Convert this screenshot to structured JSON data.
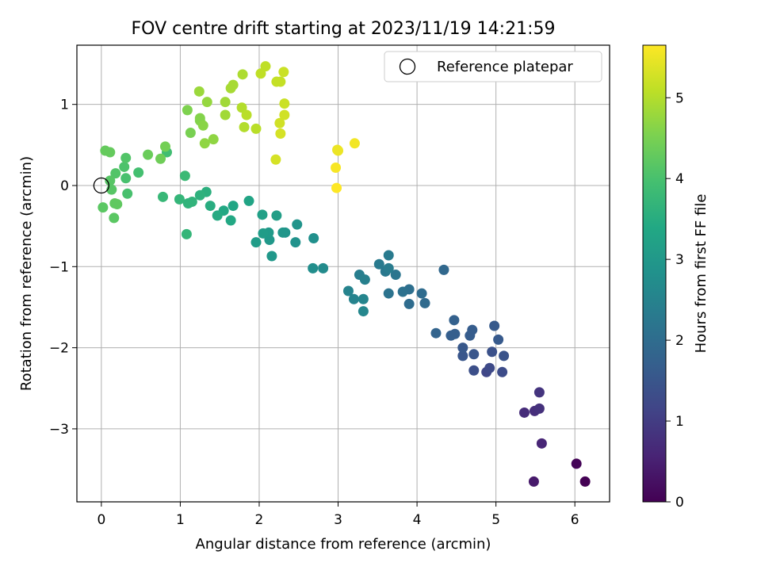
{
  "chart_data": {
    "type": "scatter",
    "title": "FOV centre drift starting at 2023/11/19 14:21:59",
    "xlabel": "Angular distance from reference (arcmin)",
    "ylabel": "Rotation from reference (arcmin)",
    "xlim": [
      -0.31,
      6.44
    ],
    "ylim": [
      -3.9,
      1.73
    ],
    "xticks": [
      "0",
      "1",
      "2",
      "3",
      "4",
      "5",
      "6"
    ],
    "yticks": [
      "−3",
      "−2",
      "−1",
      "0",
      "1"
    ],
    "grid": true,
    "legend": {
      "position": "top-right",
      "entries": [
        "Reference platepar"
      ]
    },
    "reference_point": {
      "x": 0,
      "y": 0
    },
    "colorbar": {
      "label": "Hours from first FF file",
      "range": [
        0,
        5.65
      ],
      "ticks": [
        "0",
        "1",
        "2",
        "3",
        "4",
        "5"
      ],
      "colormap": "viridis"
    },
    "points": [
      {
        "x": 6.13,
        "y": -3.65,
        "c": 0.0
      },
      {
        "x": 6.02,
        "y": -3.43,
        "c": 0.05
      },
      {
        "x": 5.48,
        "y": -3.65,
        "c": 0.4
      },
      {
        "x": 5.58,
        "y": -3.18,
        "c": 0.6
      },
      {
        "x": 5.36,
        "y": -2.8,
        "c": 0.7
      },
      {
        "x": 5.49,
        "y": -2.78,
        "c": 0.75
      },
      {
        "x": 5.55,
        "y": -2.75,
        "c": 0.8
      },
      {
        "x": 5.55,
        "y": -2.55,
        "c": 0.85
      },
      {
        "x": 4.88,
        "y": -2.3,
        "c": 1.2
      },
      {
        "x": 4.92,
        "y": -2.25,
        "c": 1.25
      },
      {
        "x": 5.08,
        "y": -2.3,
        "c": 1.3
      },
      {
        "x": 4.72,
        "y": -2.28,
        "c": 1.35
      },
      {
        "x": 4.95,
        "y": -2.05,
        "c": 1.4
      },
      {
        "x": 5.1,
        "y": -2.1,
        "c": 1.45
      },
      {
        "x": 4.58,
        "y": -2.1,
        "c": 1.5
      },
      {
        "x": 4.72,
        "y": -2.08,
        "c": 1.5
      },
      {
        "x": 4.58,
        "y": -2.0,
        "c": 1.55
      },
      {
        "x": 5.03,
        "y": -1.9,
        "c": 1.6
      },
      {
        "x": 4.98,
        "y": -1.73,
        "c": 1.6
      },
      {
        "x": 4.67,
        "y": -1.85,
        "c": 1.65
      },
      {
        "x": 4.7,
        "y": -1.78,
        "c": 1.65
      },
      {
        "x": 4.48,
        "y": -1.83,
        "c": 1.7
      },
      {
        "x": 4.43,
        "y": -1.85,
        "c": 1.7
      },
      {
        "x": 4.47,
        "y": -1.66,
        "c": 1.75
      },
      {
        "x": 4.24,
        "y": -1.82,
        "c": 1.8
      },
      {
        "x": 4.34,
        "y": -1.04,
        "c": 1.9
      },
      {
        "x": 4.1,
        "y": -1.45,
        "c": 1.95
      },
      {
        "x": 4.06,
        "y": -1.33,
        "c": 2.0
      },
      {
        "x": 3.9,
        "y": -1.46,
        "c": 2.0
      },
      {
        "x": 3.9,
        "y": -1.28,
        "c": 2.05
      },
      {
        "x": 3.82,
        "y": -1.31,
        "c": 2.1
      },
      {
        "x": 3.64,
        "y": -1.33,
        "c": 2.15
      },
      {
        "x": 3.73,
        "y": -1.1,
        "c": 2.2
      },
      {
        "x": 3.6,
        "y": -1.06,
        "c": 2.25
      },
      {
        "x": 3.64,
        "y": -0.86,
        "c": 2.3
      },
      {
        "x": 3.52,
        "y": -0.97,
        "c": 2.3
      },
      {
        "x": 3.64,
        "y": -1.02,
        "c": 2.35
      },
      {
        "x": 3.27,
        "y": -1.1,
        "c": 2.4
      },
      {
        "x": 3.34,
        "y": -1.16,
        "c": 2.45
      },
      {
        "x": 3.13,
        "y": -1.3,
        "c": 2.5
      },
      {
        "x": 3.2,
        "y": -1.4,
        "c": 2.5
      },
      {
        "x": 3.32,
        "y": -1.4,
        "c": 2.55
      },
      {
        "x": 3.32,
        "y": -1.55,
        "c": 2.6
      },
      {
        "x": 2.81,
        "y": -1.02,
        "c": 2.7
      },
      {
        "x": 2.68,
        "y": -1.02,
        "c": 2.75
      },
      {
        "x": 2.69,
        "y": -0.65,
        "c": 2.8
      },
      {
        "x": 2.46,
        "y": -0.7,
        "c": 2.85
      },
      {
        "x": 2.48,
        "y": -0.48,
        "c": 2.9
      },
      {
        "x": 2.33,
        "y": -0.58,
        "c": 2.9
      },
      {
        "x": 2.3,
        "y": -0.58,
        "c": 2.95
      },
      {
        "x": 2.16,
        "y": -0.87,
        "c": 3.0
      },
      {
        "x": 2.13,
        "y": -0.67,
        "c": 3.0
      },
      {
        "x": 2.12,
        "y": -0.58,
        "c": 3.05
      },
      {
        "x": 2.05,
        "y": -0.59,
        "c": 3.1
      },
      {
        "x": 1.96,
        "y": -0.7,
        "c": 3.1
      },
      {
        "x": 2.22,
        "y": -0.37,
        "c": 3.15
      },
      {
        "x": 2.04,
        "y": -0.36,
        "c": 3.2
      },
      {
        "x": 1.87,
        "y": -0.19,
        "c": 3.3
      },
      {
        "x": 1.67,
        "y": -0.25,
        "c": 3.35
      },
      {
        "x": 1.64,
        "y": -0.43,
        "c": 3.4
      },
      {
        "x": 1.55,
        "y": -0.31,
        "c": 3.4
      },
      {
        "x": 1.47,
        "y": -0.37,
        "c": 3.45
      },
      {
        "x": 1.38,
        "y": -0.25,
        "c": 3.5
      },
      {
        "x": 1.33,
        "y": -0.08,
        "c": 3.55
      },
      {
        "x": 1.25,
        "y": -0.12,
        "c": 3.6
      },
      {
        "x": 1.15,
        "y": -0.2,
        "c": 3.65
      },
      {
        "x": 1.1,
        "y": -0.22,
        "c": 3.65
      },
      {
        "x": 0.99,
        "y": -0.17,
        "c": 3.7
      },
      {
        "x": 0.78,
        "y": -0.14,
        "c": 3.75
      },
      {
        "x": 1.08,
        "y": -0.6,
        "c": 3.7
      },
      {
        "x": 1.06,
        "y": 0.12,
        "c": 3.8
      },
      {
        "x": 0.83,
        "y": 0.41,
        "c": 3.9
      },
      {
        "x": 0.47,
        "y": 0.16,
        "c": 3.95
      },
      {
        "x": 0.33,
        "y": -0.1,
        "c": 4.0
      },
      {
        "x": 0.31,
        "y": 0.09,
        "c": 4.0
      },
      {
        "x": 0.29,
        "y": 0.23,
        "c": 4.05
      },
      {
        "x": 0.31,
        "y": 0.34,
        "c": 4.1
      },
      {
        "x": 0.18,
        "y": 0.15,
        "c": 4.1
      },
      {
        "x": 0.11,
        "y": 0.06,
        "c": 4.15
      },
      {
        "x": 0.13,
        "y": -0.05,
        "c": 4.15
      },
      {
        "x": 0.02,
        "y": -0.27,
        "c": 4.2
      },
      {
        "x": 0.16,
        "y": -0.4,
        "c": 4.2
      },
      {
        "x": 0.17,
        "y": -0.22,
        "c": 4.25
      },
      {
        "x": 0.2,
        "y": -0.23,
        "c": 4.25
      },
      {
        "x": 0.05,
        "y": 0.43,
        "c": 4.3
      },
      {
        "x": 0.11,
        "y": 0.41,
        "c": 4.3
      },
      {
        "x": 0.59,
        "y": 0.38,
        "c": 4.35
      },
      {
        "x": 0.75,
        "y": 0.33,
        "c": 4.4
      },
      {
        "x": 0.81,
        "y": 0.48,
        "c": 4.45
      },
      {
        "x": 1.13,
        "y": 0.65,
        "c": 4.5
      },
      {
        "x": 1.09,
        "y": 0.93,
        "c": 4.55
      },
      {
        "x": 1.25,
        "y": 0.8,
        "c": 4.6
      },
      {
        "x": 1.25,
        "y": 0.83,
        "c": 4.6
      },
      {
        "x": 1.29,
        "y": 0.74,
        "c": 4.65
      },
      {
        "x": 1.31,
        "y": 0.52,
        "c": 4.7
      },
      {
        "x": 1.42,
        "y": 0.57,
        "c": 4.7
      },
      {
        "x": 1.34,
        "y": 1.03,
        "c": 4.75
      },
      {
        "x": 1.24,
        "y": 1.16,
        "c": 4.8
      },
      {
        "x": 1.57,
        "y": 1.03,
        "c": 4.85
      },
      {
        "x": 1.57,
        "y": 0.87,
        "c": 4.85
      },
      {
        "x": 1.64,
        "y": 1.2,
        "c": 4.9
      },
      {
        "x": 1.67,
        "y": 1.24,
        "c": 4.9
      },
      {
        "x": 1.79,
        "y": 1.37,
        "c": 4.95
      },
      {
        "x": 1.78,
        "y": 0.96,
        "c": 5.0
      },
      {
        "x": 1.81,
        "y": 0.72,
        "c": 5.0
      },
      {
        "x": 1.84,
        "y": 0.87,
        "c": 5.05
      },
      {
        "x": 1.96,
        "y": 0.7,
        "c": 5.05
      },
      {
        "x": 2.02,
        "y": 1.38,
        "c": 5.1
      },
      {
        "x": 2.08,
        "y": 1.47,
        "c": 5.1
      },
      {
        "x": 2.22,
        "y": 1.28,
        "c": 5.15
      },
      {
        "x": 2.27,
        "y": 1.28,
        "c": 5.15
      },
      {
        "x": 2.31,
        "y": 1.4,
        "c": 5.2
      },
      {
        "x": 2.32,
        "y": 1.01,
        "c": 5.2
      },
      {
        "x": 2.32,
        "y": 0.87,
        "c": 5.25
      },
      {
        "x": 2.26,
        "y": 0.77,
        "c": 5.25
      },
      {
        "x": 2.27,
        "y": 0.64,
        "c": 5.3
      },
      {
        "x": 2.21,
        "y": 0.32,
        "c": 5.3
      },
      {
        "x": 2.99,
        "y": 0.44,
        "c": 5.5
      },
      {
        "x": 3.0,
        "y": 0.43,
        "c": 5.5
      },
      {
        "x": 3.21,
        "y": 0.52,
        "c": 5.55
      },
      {
        "x": 2.97,
        "y": 0.22,
        "c": 5.6
      },
      {
        "x": 2.98,
        "y": -0.03,
        "c": 5.65
      }
    ]
  }
}
